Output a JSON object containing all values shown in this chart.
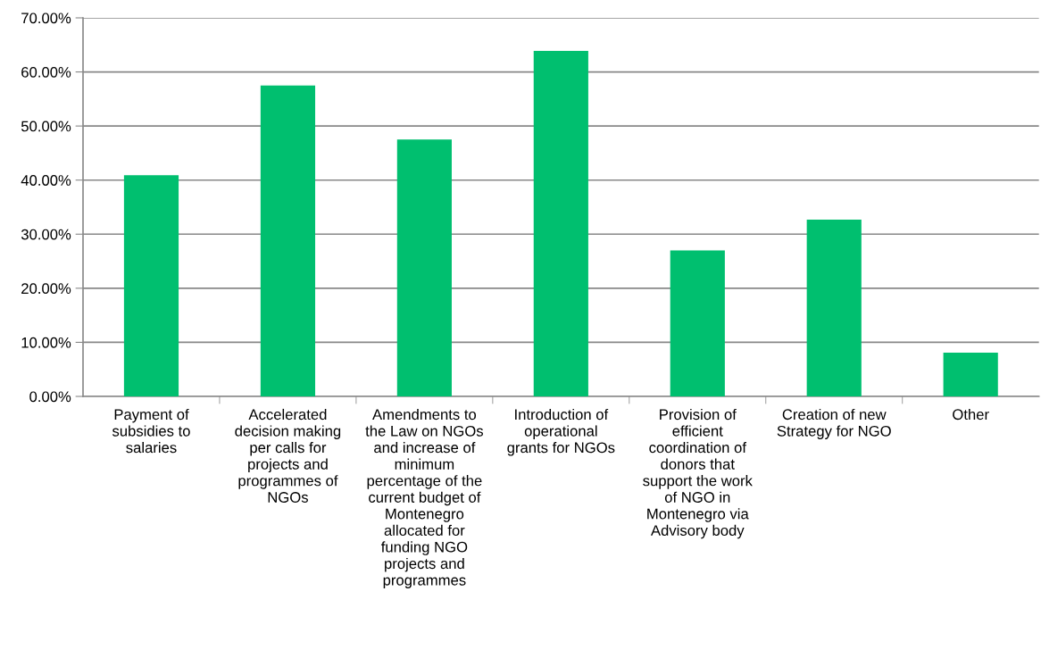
{
  "chart_data": {
    "type": "bar",
    "categories": [
      "Payment of\nsubsidies to\nsalaries",
      "Accelerated\ndecision making\nper calls for\nprojects and\nprogrammes of\nNGOs",
      "Amendments to\nthe Law on NGOs\nand increase of\nminimum\npercentage of the\ncurrent budget of\nMontenegro\nallocated for\nfunding NGO\nprojects and\nprogrammes",
      "Introduction of\noperational\ngrants for NGOs",
      "Provision of\nefficient\ncoordination of\ndonors that\nsupport the work\nof NGO in\nMontenegro via\nAdvisory body",
      "Creation of new\nStrategy for NGO",
      "Other"
    ],
    "values": [
      40.9,
      57.5,
      47.5,
      63.9,
      27.0,
      32.7,
      8.1
    ],
    "color": "#00bf6f",
    "ylim": [
      0,
      70
    ],
    "yticks": [
      {
        "value": 0,
        "label": "0.00%"
      },
      {
        "value": 10,
        "label": "10.00%"
      },
      {
        "value": 20,
        "label": "20.00%"
      },
      {
        "value": 30,
        "label": "30.00%"
      },
      {
        "value": 40,
        "label": "40.00%"
      },
      {
        "value": 50,
        "label": "50.00%"
      },
      {
        "value": 60,
        "label": "60.00%"
      },
      {
        "value": 70,
        "label": "70.00%"
      }
    ],
    "grid": "y",
    "legend": false
  }
}
